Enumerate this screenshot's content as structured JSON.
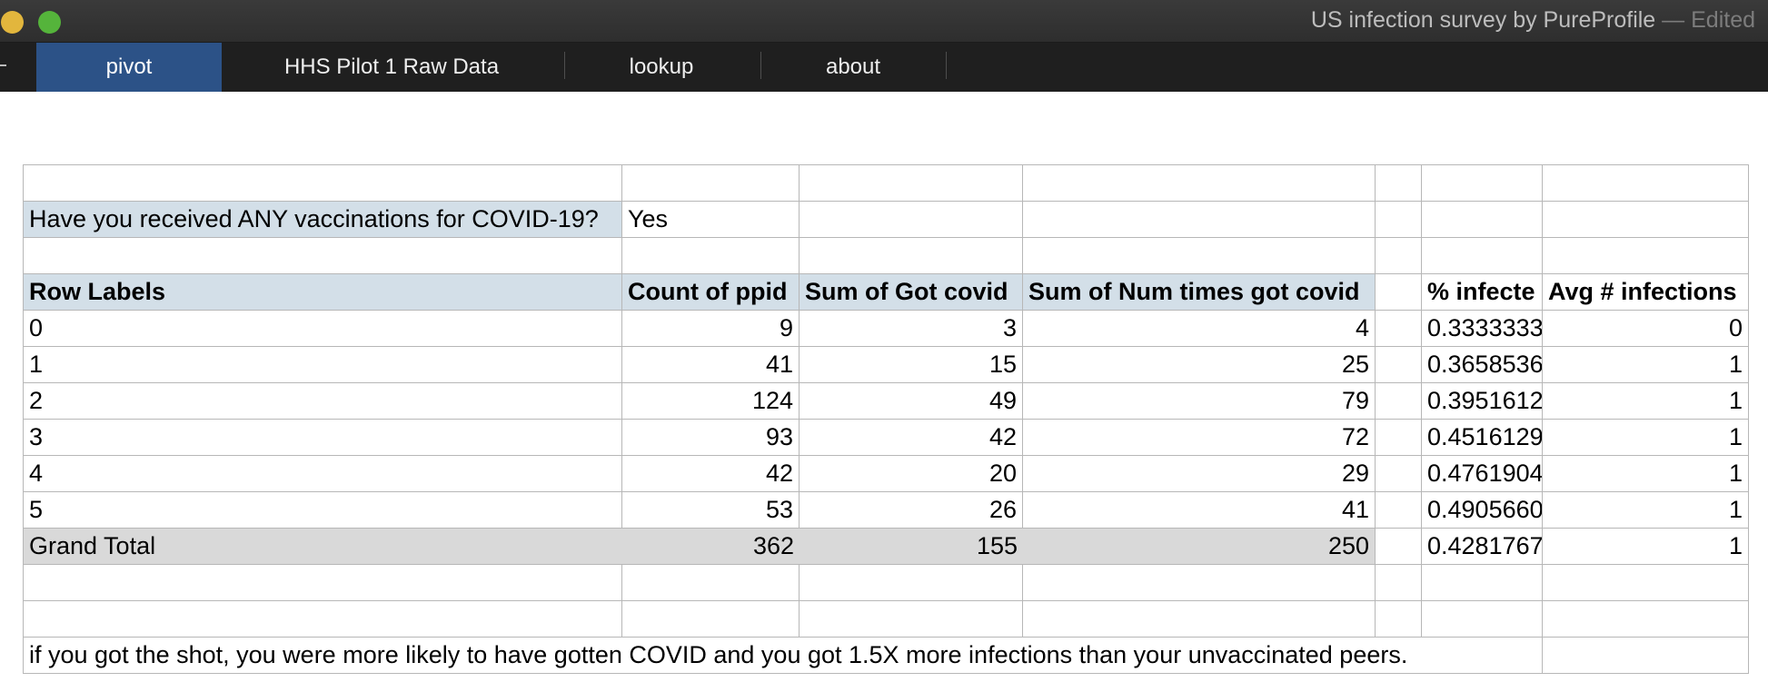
{
  "window": {
    "title": "US infection survey by PureProfile",
    "edited_suffix": " — Edited"
  },
  "tabs": [
    {
      "label": "pivot",
      "active": true
    },
    {
      "label": "HHS Pilot 1 Raw Data",
      "active": false
    },
    {
      "label": "lookup",
      "active": false
    },
    {
      "label": "about",
      "active": false
    }
  ],
  "filter": {
    "label": "Have you received ANY vaccinations for COVID-19?",
    "value": "Yes"
  },
  "pivot": {
    "headers": [
      "Row Labels",
      "Count of ppid",
      "Sum of Got covid",
      "Sum of Num times got covid",
      "",
      "% infecte",
      "Avg # infections"
    ],
    "rows": [
      [
        "0",
        "9",
        "3",
        "4",
        "",
        "0.3333333",
        "0"
      ],
      [
        "1",
        "41",
        "15",
        "25",
        "",
        "0.3658536",
        "1"
      ],
      [
        "2",
        "124",
        "49",
        "79",
        "",
        "0.3951612",
        "1"
      ],
      [
        "3",
        "93",
        "42",
        "72",
        "",
        "0.4516129",
        "1"
      ],
      [
        "4",
        "42",
        "20",
        "29",
        "",
        "0.4761904",
        "1"
      ],
      [
        "5",
        "53",
        "26",
        "41",
        "",
        "0.4905660",
        "1"
      ]
    ],
    "total": [
      "Grand Total",
      "362",
      "155",
      "250",
      "",
      "0.4281767",
      "1"
    ]
  },
  "note": "if you got the shot, you were more likely to have gotten COVID and you got 1.5X more infections than your unvaccinated peers.",
  "colors": {
    "titlebar": "#2e2e2e",
    "tabbar": "#1f1f1f",
    "active_tab": "#2c5287",
    "pivot_header": "#d3dfe8",
    "grand_total": "#d9d9d9",
    "gridline": "#b7b7b7"
  }
}
